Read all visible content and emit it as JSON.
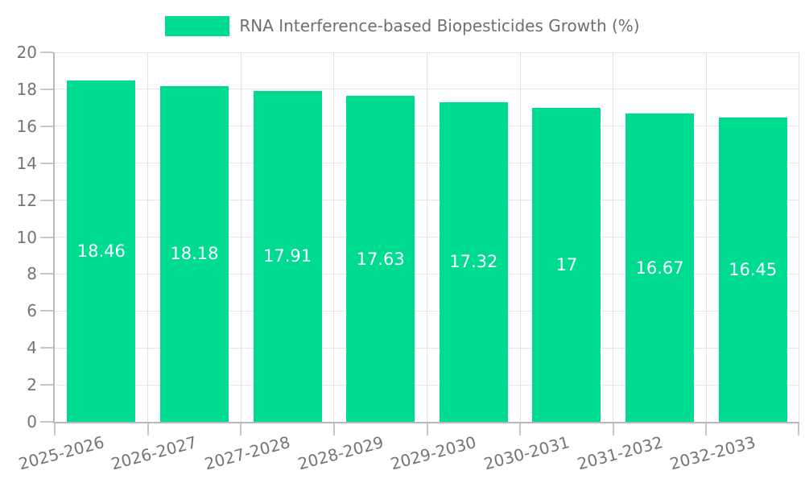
{
  "legend": {
    "label": "RNA Interference-based Biopesticides Growth (%)",
    "swatch_color": "#00DC8F"
  },
  "chart_data": {
    "type": "bar",
    "title": "RNA Interference-based Biopesticides Growth (%)",
    "categories": [
      "2025-2026",
      "2026-2027",
      "2027-2028",
      "2028-2029",
      "2029-2030",
      "2030-2031",
      "2031-2032",
      "2032-2033"
    ],
    "values": [
      18.46,
      18.18,
      17.91,
      17.63,
      17.32,
      17,
      16.67,
      16.45
    ],
    "value_labels": [
      "18.46",
      "18.18",
      "17.91",
      "17.63",
      "17.32",
      "17",
      "16.67",
      "16.45"
    ],
    "xlabel": "",
    "ylabel": "",
    "ylim": [
      0,
      20
    ],
    "ytick_step": 2,
    "yticks": [
      0,
      2,
      4,
      6,
      8,
      10,
      12,
      14,
      16,
      18,
      20
    ],
    "bar_color": "#00DC8F",
    "value_label_color": "#ffffff",
    "axis_text_color": "#757575",
    "grid": true,
    "legend_position": "top-center",
    "x_tick_rotation_deg": -15
  }
}
